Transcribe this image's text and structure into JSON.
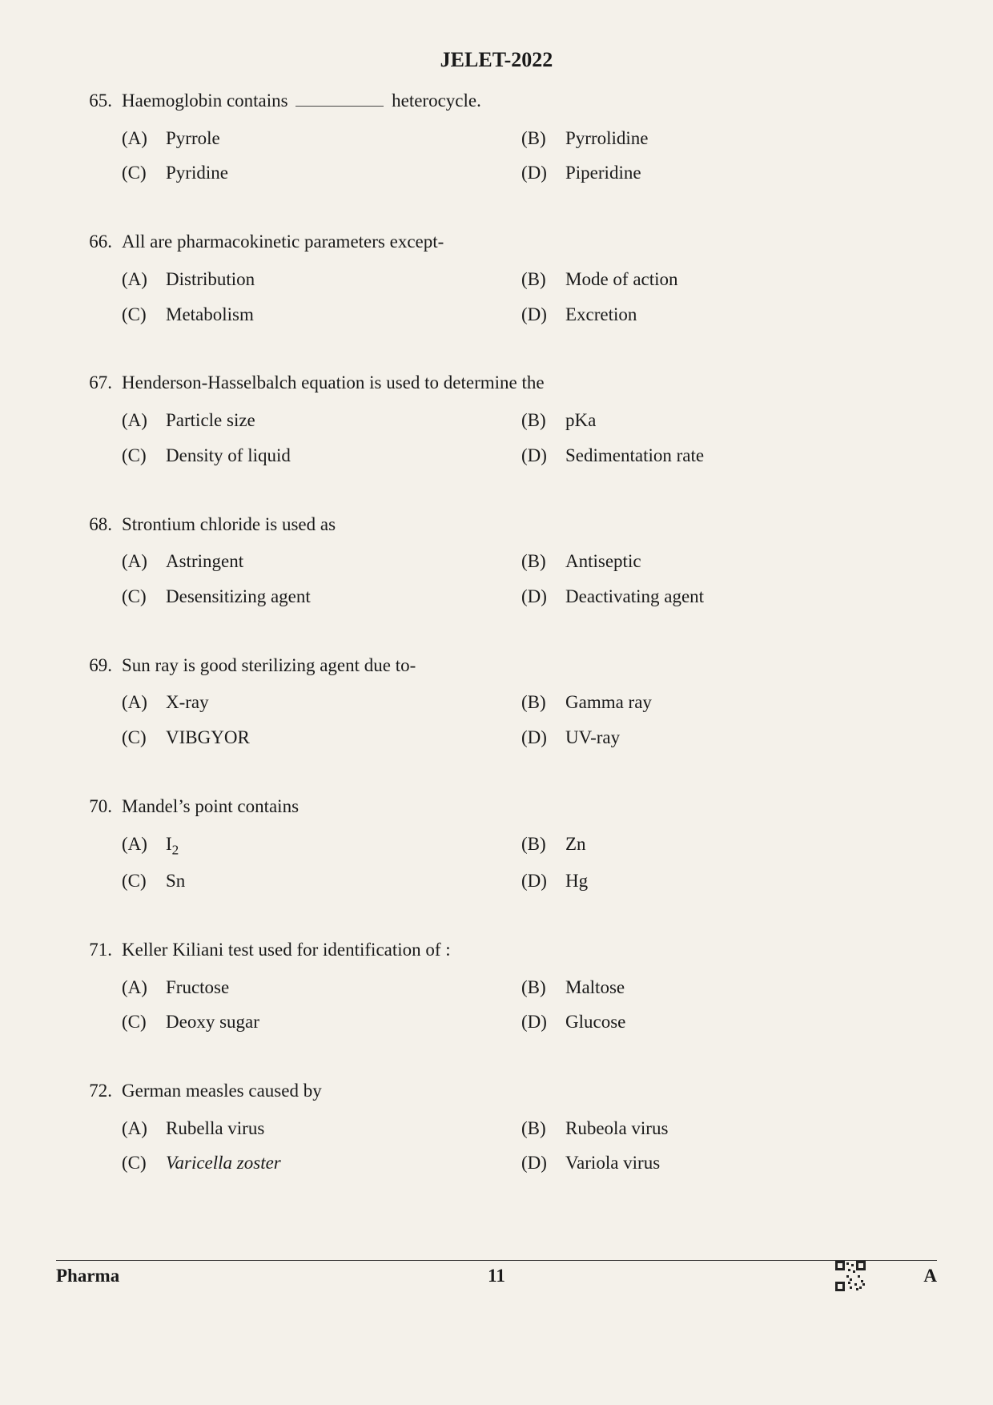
{
  "header": "JELET-2022",
  "footer": {
    "subject": "Pharma",
    "page": "11",
    "series": "A"
  },
  "colors": {
    "bg": "#f4f1ea",
    "text": "#1a1a1a",
    "line": "#333333"
  },
  "typography": {
    "font_family": "Times New Roman",
    "body_size_pt": 17,
    "header_size_pt": 20,
    "header_weight": "bold"
  },
  "questions": [
    {
      "num": "65.",
      "text_pre": "Haemoglobin contains ",
      "text_blank": true,
      "text_post": " heterocycle.",
      "A": "Pyrrole",
      "B": "Pyrrolidine",
      "C": "Pyridine",
      "D": "Piperidine"
    },
    {
      "num": "66.",
      "text": "All are pharmacokinetic parameters except-",
      "A": "Distribution",
      "B": "Mode of action",
      "C": "Metabolism",
      "D": "Excretion"
    },
    {
      "num": "67.",
      "text": "Henderson-Hasselbalch equation is used to determine the",
      "A": "Particle size",
      "B": "pKa",
      "C": "Density of liquid",
      "D": "Sedimentation rate"
    },
    {
      "num": "68.",
      "text": "Strontium chloride is used as",
      "A": "Astringent",
      "B": "Antiseptic",
      "C": "Desensitizing agent",
      "D": "Deactivating agent"
    },
    {
      "num": "69.",
      "text": "Sun ray is good sterilizing agent due to-",
      "A": "X-ray",
      "B": "Gamma ray",
      "C": "VIBGYOR",
      "D": "UV-ray"
    },
    {
      "num": "70.",
      "text": "Mandel’s point contains",
      "A_html": "I<span class='sub'>2</span>",
      "B": "Zn",
      "C": "Sn",
      "D": "Hg"
    },
    {
      "num": "71.",
      "text": "Keller Kiliani test used for identification of :",
      "A": "Fructose",
      "B": "Maltose",
      "C": "Deoxy sugar",
      "D": "Glucose"
    },
    {
      "num": "72.",
      "text": "German measles caused by",
      "A": "Rubella virus",
      "B": "Rubeola virus",
      "C_html": "<span class='italic'>Varicella zoster</span>",
      "D": "Variola virus"
    }
  ]
}
